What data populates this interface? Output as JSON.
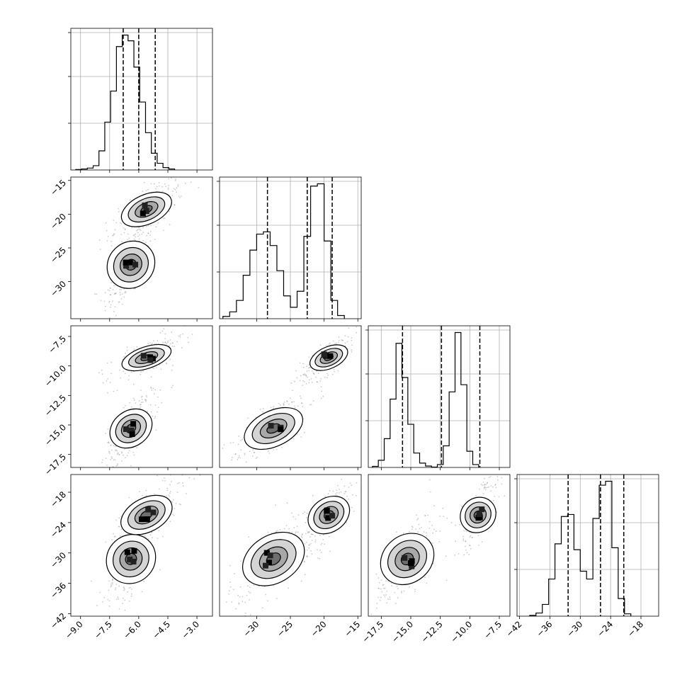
{
  "chart_data": {
    "type": "corner",
    "n_params": 4,
    "grid": true,
    "params": [
      {
        "range": [
          -9.5,
          -2.2
        ],
        "ticks": [
          -9.0,
          -7.5,
          -6.0,
          -4.5,
          -3.0
        ],
        "tick_labels": [
          "−9.0",
          "−7.5",
          "−6.0",
          "−4.5",
          "−3.0"
        ],
        "hist": {
          "edges_start": -9.25,
          "bin_width": 0.3,
          "counts": [
            1,
            2,
            4,
            9,
            40,
            100,
            165,
            258,
            282,
            270,
            215,
            142,
            78,
            35,
            14,
            5,
            2
          ]
        },
        "quantiles": [
          -6.8,
          -6.0,
          -5.15
        ]
      },
      {
        "range": [
          -35.5,
          -14.5
        ],
        "ticks": [
          -30,
          -25,
          -20,
          -15
        ],
        "tick_labels": [
          "−30",
          "−25",
          "−20",
          "−15"
        ],
        "yticks": [
          -15,
          -20,
          -25,
          -30
        ],
        "ytick_labels": [
          "−15",
          "−20",
          "−25",
          "−30"
        ],
        "hist": {
          "edges_start": -35.0,
          "bin_width": 1.0,
          "counts": [
            5,
            15,
            40,
            95,
            150,
            185,
            190,
            160,
            105,
            50,
            25,
            60,
            180,
            290,
            295,
            170,
            40,
            7
          ]
        },
        "quantiles": [
          -28.4,
          -22.5,
          -18.8
        ]
      },
      {
        "range": [
          -18.6,
          -6.6
        ],
        "ticks": [
          -17.5,
          -15.0,
          -12.5,
          -10.0,
          -7.5
        ],
        "tick_labels": [
          "−17.5",
          "−15.0",
          "−12.5",
          "−10.0",
          "−7.5"
        ],
        "yticks": [
          -7.5,
          -10.0,
          -12.5,
          -15.0,
          -17.5
        ],
        "ytick_labels": [
          "−7.5",
          "−10.0",
          "−12.5",
          "−15.0",
          "−17.5"
        ],
        "hist": {
          "edges_start": -18.25,
          "bin_width": 0.5,
          "counts": [
            3,
            20,
            80,
            190,
            345,
            250,
            120,
            40,
            12,
            4,
            1,
            8,
            60,
            210,
            375,
            230,
            45,
            8
          ]
        },
        "quantiles": [
          -15.7,
          -12.4,
          -9.15
        ]
      },
      {
        "range": [
          -42.5,
          -14.5
        ],
        "ticks": [
          -42,
          -36,
          -30,
          -24,
          -18
        ],
        "tick_labels": [
          "−42",
          "−36",
          "−30",
          "−24",
          "−18"
        ],
        "yticks": [
          -18,
          -24,
          -30,
          -36,
          -42
        ],
        "ytick_labels": [
          "−18",
          "−24",
          "−30",
          "−36",
          "−42"
        ],
        "hist": {
          "edges_start": -40.0,
          "bin_width": 1.25,
          "counts": [
            2,
            8,
            30,
            95,
            185,
            255,
            260,
            170,
            115,
            95,
            250,
            335,
            345,
            175,
            45,
            6
          ]
        },
        "quantiles": [
          -32.4,
          -26.0,
          -21.4
        ]
      }
    ],
    "modes": [
      {
        "weight": 0.52,
        "mean": [
          -6.4,
          -27.5,
          -15.3,
          -31.2
        ],
        "sd": [
          0.45,
          2.0,
          0.9,
          2.8
        ]
      },
      {
        "weight": 0.48,
        "mean": [
          -5.6,
          -19.3,
          -9.3,
          -22.5
        ],
        "sd": [
          0.6,
          1.3,
          0.55,
          2.0
        ]
      }
    ]
  }
}
